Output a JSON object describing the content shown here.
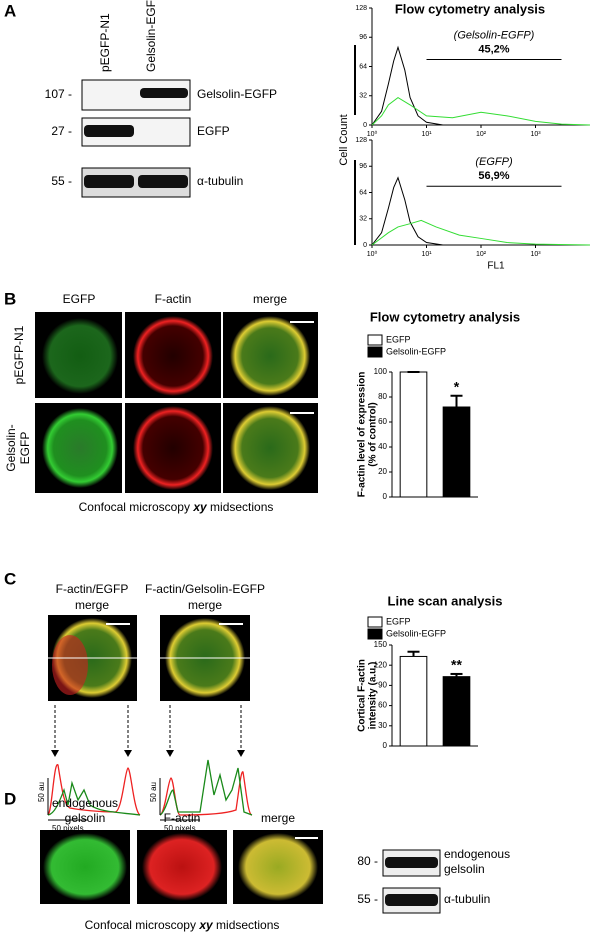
{
  "panel_labels": [
    "A",
    "B",
    "C",
    "D"
  ],
  "blot_a": {
    "lanes": [
      "pEGFP-N1",
      "Gelsolin-EGFP"
    ],
    "rows": [
      {
        "marker": "107 -",
        "name": "Gelsolin-EGFP"
      },
      {
        "marker": "27 -",
        "name": "EGFP"
      },
      {
        "marker": "55 -",
        "name": "α-tubulin"
      }
    ]
  },
  "microscopy_b": {
    "columns": [
      "EGFP",
      "F-actin",
      "merge"
    ],
    "rows": [
      [
        "pEGFP-N1"
      ],
      [
        "Gelsolin-",
        "EGFP"
      ]
    ],
    "caption": [
      "Confocal microscopy",
      "xy",
      "midsections"
    ]
  },
  "microscopy_c": {
    "images": [
      {
        "title": "F-actin/EGFP",
        "subtitle": "merge",
        "scale_y": "50 au",
        "scale_x": "50 pixels"
      },
      {
        "title": "F-actin/Gelsolin-EGFP",
        "subtitle": "merge",
        "scale_y": "50 au",
        "scale_x": "50 pixels"
      }
    ]
  },
  "microscopy_d": {
    "columns": [
      [
        "endogenous",
        "gelsolin"
      ],
      [
        "F-actin"
      ],
      [
        "merge"
      ]
    ],
    "caption": [
      "Confocal microscopy",
      "xy",
      "midsections"
    ]
  },
  "blot_d": {
    "rows": [
      {
        "marker": "80 -",
        "name": [
          "endogenous",
          "gelsolin"
        ]
      },
      {
        "marker": "55 -",
        "name": [
          "α-tubulin"
        ]
      }
    ]
  },
  "chart_data": [
    {
      "type": "line",
      "title": "Flow cytometry analysis",
      "ylabel": "Cell Count",
      "annotation": "(Gelsolin-EGFP)",
      "gate_label": "45,2%",
      "gate": [
        10,
        3000
      ],
      "log_x": true,
      "xlim": [
        1,
        10000
      ],
      "xticks": [
        {
          "value": 1,
          "label": "10⁰"
        },
        {
          "value": 10,
          "label": "10¹"
        },
        {
          "value": 100,
          "label": "10²"
        },
        {
          "value": 1000,
          "label": "10³"
        }
      ],
      "ylim": [
        0,
        128
      ],
      "yticks": [
        0,
        32,
        64,
        96,
        128
      ],
      "series": [
        {
          "color": "#000000",
          "x": [
            1,
            1.5,
            2,
            2.5,
            3,
            4,
            5,
            7,
            10,
            20
          ],
          "values": [
            0,
            15,
            45,
            70,
            85,
            60,
            30,
            10,
            3,
            0
          ]
        },
        {
          "color": "#33dd33",
          "x": [
            1,
            1.5,
            2,
            3,
            5,
            10,
            30,
            100,
            300,
            1000,
            3000,
            10000
          ],
          "values": [
            0,
            10,
            22,
            30,
            22,
            10,
            8,
            14,
            10,
            4,
            1,
            0
          ]
        }
      ]
    },
    {
      "type": "line",
      "xlabel": "FL1",
      "annotation": "(EGFP)",
      "gate_label": "56,9%",
      "gate": [
        10,
        3000
      ],
      "log_x": true,
      "xlim": [
        1,
        10000
      ],
      "xticks": [
        {
          "value": 1,
          "label": "10⁰"
        },
        {
          "value": 10,
          "label": "10¹"
        },
        {
          "value": 100,
          "label": "10²"
        },
        {
          "value": 1000,
          "label": "10³"
        }
      ],
      "ylim": [
        0,
        128
      ],
      "yticks": [
        0,
        32,
        64,
        96,
        128
      ],
      "series": [
        {
          "color": "#000000",
          "x": [
            1,
            1.5,
            2,
            2.5,
            3,
            4,
            5,
            7,
            10,
            20
          ],
          "values": [
            0,
            15,
            45,
            70,
            82,
            55,
            28,
            10,
            3,
            0
          ]
        },
        {
          "color": "#33dd33",
          "x": [
            1,
            2,
            3,
            5,
            8,
            15,
            40,
            100,
            300,
            1000,
            10000
          ],
          "values": [
            0,
            15,
            22,
            26,
            30,
            22,
            12,
            8,
            3,
            1,
            0
          ]
        }
      ]
    },
    {
      "type": "bar",
      "title": "Flow cytometry analysis",
      "ylabel": [
        "F-actin level of expression",
        "(% of control)"
      ],
      "categories": [
        "EGFP",
        "Gelsolin-EGFP"
      ],
      "values": [
        100,
        72
      ],
      "errors": [
        0,
        9
      ],
      "colors": [
        "#ffffff",
        "#000000"
      ],
      "ylim": [
        0,
        100
      ],
      "yticks": [
        0,
        20,
        40,
        60,
        80,
        100
      ],
      "annotation": "*"
    },
    {
      "type": "bar",
      "title": "Line scan analysis",
      "ylabel": [
        "Cortical F-actin",
        "intensity (a.u.)"
      ],
      "categories": [
        "EGFP",
        "Gelsolin-EGFP"
      ],
      "values": [
        133,
        103
      ],
      "errors": [
        7,
        4
      ],
      "colors": [
        "#ffffff",
        "#000000"
      ],
      "ylim": [
        0,
        150
      ],
      "yticks": [
        0,
        30,
        60,
        90,
        120,
        150
      ],
      "annotation": "**"
    }
  ]
}
